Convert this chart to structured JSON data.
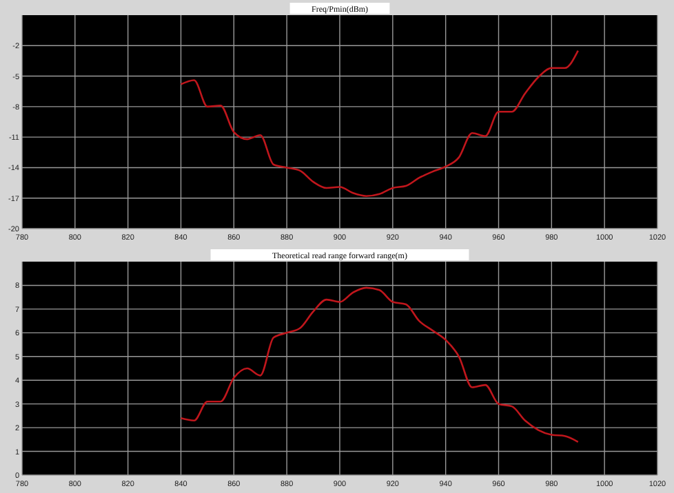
{
  "chart_data": [
    {
      "type": "line",
      "title": "Freq/Pmin(dBm)",
      "x": [
        840,
        845,
        850,
        855,
        860,
        865,
        870,
        875,
        880,
        885,
        890,
        895,
        900,
        905,
        910,
        915,
        920,
        925,
        930,
        935,
        940,
        945,
        950,
        955,
        960,
        965,
        970,
        975,
        980,
        985,
        990
      ],
      "series": [
        {
          "color": "#c0161c",
          "values": [
            -5.8,
            -5.4,
            -8,
            -7.9,
            -10.5,
            -11.2,
            -10.8,
            -13.7,
            -14,
            -14.3,
            -15.4,
            -16,
            -15.9,
            -16.5,
            -16.8,
            -16.6,
            -16,
            -15.8,
            -15,
            -14.4,
            -13.9,
            -13,
            -10.6,
            -10.9,
            -8.5,
            -8.5,
            -6.7,
            -5.1,
            -4.2,
            -4.2,
            -2.5
          ]
        }
      ],
      "xlim": [
        780,
        1020
      ],
      "xticks": [
        780,
        800,
        820,
        840,
        860,
        880,
        900,
        920,
        940,
        960,
        980,
        1000,
        1020
      ],
      "ylim": [
        -20,
        1
      ],
      "yticks": [
        -20,
        -17,
        -14,
        -11,
        -8,
        -5,
        -2
      ],
      "grid": true
    },
    {
      "type": "line",
      "title": "Theoretical read range forward range(m)",
      "x": [
        840,
        845,
        850,
        855,
        860,
        865,
        870,
        875,
        880,
        885,
        890,
        895,
        900,
        905,
        910,
        915,
        920,
        925,
        930,
        935,
        940,
        945,
        950,
        955,
        960,
        965,
        970,
        975,
        980,
        985,
        990
      ],
      "series": [
        {
          "color": "#c0161c",
          "values": [
            2.4,
            2.3,
            3.1,
            3.1,
            4.1,
            4.5,
            4.2,
            5.8,
            6,
            6.2,
            6.9,
            7.4,
            7.3,
            7.7,
            7.9,
            7.8,
            7.3,
            7.2,
            6.5,
            6.1,
            5.7,
            5,
            3.7,
            3.8,
            3,
            2.9,
            2.3,
            1.9,
            1.7,
            1.65,
            1.4
          ]
        }
      ],
      "xlim": [
        780,
        1020
      ],
      "xticks": [
        780,
        800,
        820,
        840,
        860,
        880,
        900,
        920,
        940,
        960,
        980,
        1000,
        1020
      ],
      "ylim": [
        0,
        9
      ],
      "yticks": [
        0,
        1,
        2,
        3,
        4,
        5,
        6,
        7,
        8
      ],
      "grid": true
    }
  ]
}
